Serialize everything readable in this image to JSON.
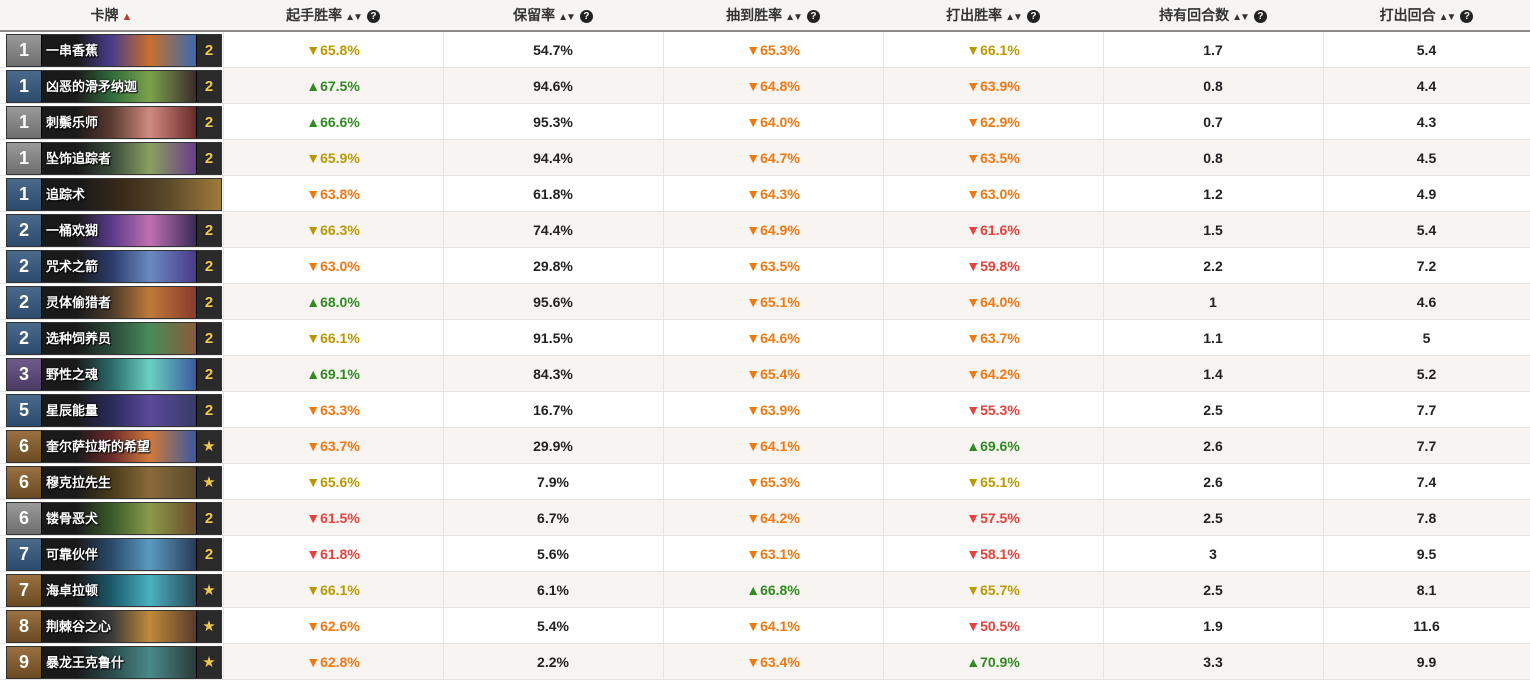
{
  "headers": {
    "card": "卡牌",
    "mulligan_winrate": "起手胜率",
    "keep_rate": "保留率",
    "drawn_winrate": "抽到胜率",
    "played_winrate": "打出胜率",
    "turns_held": "持有回合数",
    "turn_played": "打出回合"
  },
  "colors": {
    "up_green": "#2e8b1e",
    "down_yellow": "#b89a00",
    "down_orange": "#f07810",
    "down_red": "#e5423c"
  },
  "rows": [
    {
      "cost": "1",
      "cost_color": "c-gray",
      "name": "一串香蕉",
      "count": "2",
      "art": [
        "#4a3c8c",
        "#c9702e",
        "#3a6ab0"
      ],
      "mwr": "▼65.8%",
      "mwr_c": "down-y",
      "keep": "54.7%",
      "dwr": "▼65.3%",
      "dwr_c": "down-o",
      "pwr": "▼66.1%",
      "pwr_c": "down-y",
      "held": "1.7",
      "turn": "5.4"
    },
    {
      "cost": "1",
      "cost_color": "c-blue",
      "name": "凶恶的滑矛纳迦",
      "count": "2",
      "art": [
        "#2f6b3a",
        "#7aa34a",
        "#3c2a2a"
      ],
      "mwr": "▲67.5%",
      "mwr_c": "up-g",
      "keep": "94.6%",
      "dwr": "▼64.8%",
      "dwr_c": "down-o",
      "pwr": "▼63.9%",
      "pwr_c": "down-o",
      "held": "0.8",
      "turn": "4.4"
    },
    {
      "cost": "1",
      "cost_color": "c-gray",
      "name": "刺鬃乐师",
      "count": "2",
      "art": [
        "#5a3a30",
        "#d08a80",
        "#6a2a2a"
      ],
      "mwr": "▲66.6%",
      "mwr_c": "up-g",
      "keep": "95.3%",
      "dwr": "▼64.0%",
      "dwr_c": "down-o",
      "pwr": "▼62.9%",
      "pwr_c": "down-o",
      "held": "0.7",
      "turn": "4.3"
    },
    {
      "cost": "1",
      "cost_color": "c-gray",
      "name": "坠饰追踪者",
      "count": "2",
      "art": [
        "#3a4a3a",
        "#8aa060",
        "#6a3a8a"
      ],
      "mwr": "▼65.9%",
      "mwr_c": "down-y",
      "keep": "94.4%",
      "dwr": "▼64.7%",
      "dwr_c": "down-o",
      "pwr": "▼63.5%",
      "pwr_c": "down-o",
      "held": "0.8",
      "turn": "4.5"
    },
    {
      "cost": "1",
      "cost_color": "c-blue",
      "name": "追踪术",
      "count": "",
      "art": [
        "#3a2a1a",
        "#5a4a2a",
        "#a07a3a"
      ],
      "mwr": "▼63.8%",
      "mwr_c": "down-o",
      "keep": "61.8%",
      "dwr": "▼64.3%",
      "dwr_c": "down-o",
      "pwr": "▼63.0%",
      "pwr_c": "down-o",
      "held": "1.2",
      "turn": "4.9"
    },
    {
      "cost": "2",
      "cost_color": "c-blue",
      "name": "一桶欢猢",
      "count": "2",
      "art": [
        "#5a3a8a",
        "#c070b0",
        "#3a2a5a"
      ],
      "mwr": "▼66.3%",
      "mwr_c": "down-y",
      "keep": "74.4%",
      "dwr": "▼64.9%",
      "dwr_c": "down-o",
      "pwr": "▼61.6%",
      "pwr_c": "down-r",
      "held": "1.5",
      "turn": "5.4"
    },
    {
      "cost": "2",
      "cost_color": "c-blue",
      "name": "咒术之箭",
      "count": "2",
      "art": [
        "#2a3a6a",
        "#6a8ac0",
        "#4a3a8a"
      ],
      "mwr": "▼63.0%",
      "mwr_c": "down-o",
      "keep": "29.8%",
      "dwr": "▼63.5%",
      "dwr_c": "down-o",
      "pwr": "▼59.8%",
      "pwr_c": "down-r",
      "held": "2.2",
      "turn": "7.2"
    },
    {
      "cost": "2",
      "cost_color": "c-blue",
      "name": "灵体偷猎者",
      "count": "2",
      "art": [
        "#4a3a2a",
        "#c07a3a",
        "#8a3a2a"
      ],
      "mwr": "▲68.0%",
      "mwr_c": "up-g",
      "keep": "95.6%",
      "dwr": "▼65.1%",
      "dwr_c": "down-o",
      "pwr": "▼64.0%",
      "pwr_c": "down-o",
      "held": "1",
      "turn": "4.6"
    },
    {
      "cost": "2",
      "cost_color": "c-blue",
      "name": "选种饲养员",
      "count": "2",
      "art": [
        "#2a4a3a",
        "#4a8a5a",
        "#8a5a3a"
      ],
      "mwr": "▼66.1%",
      "mwr_c": "down-y",
      "keep": "91.5%",
      "dwr": "▼64.6%",
      "dwr_c": "down-o",
      "pwr": "▼63.7%",
      "pwr_c": "down-o",
      "held": "1.1",
      "turn": "5"
    },
    {
      "cost": "3",
      "cost_color": "c-purple",
      "name": "野性之魂",
      "count": "2",
      "art": [
        "#2a6a6a",
        "#6ad0c0",
        "#3a5aa0"
      ],
      "mwr": "▲69.1%",
      "mwr_c": "up-g",
      "keep": "84.3%",
      "dwr": "▼65.4%",
      "dwr_c": "down-o",
      "pwr": "▼64.2%",
      "pwr_c": "down-o",
      "held": "1.4",
      "turn": "5.2"
    },
    {
      "cost": "5",
      "cost_color": "c-blue",
      "name": "星辰能量",
      "count": "2",
      "art": [
        "#2a2a5a",
        "#5a4a9a",
        "#3a3a6a"
      ],
      "mwr": "▼63.3%",
      "mwr_c": "down-o",
      "keep": "16.7%",
      "dwr": "▼63.9%",
      "dwr_c": "down-o",
      "pwr": "▼55.3%",
      "pwr_c": "down-r",
      "held": "2.5",
      "turn": "7.7"
    },
    {
      "cost": "6",
      "cost_color": "c-brown",
      "name": "奎尔萨拉斯的希望",
      "count": "★",
      "art": [
        "#6a2a2a",
        "#d07a3a",
        "#3a5aa0"
      ],
      "mwr": "▼63.7%",
      "mwr_c": "down-o",
      "keep": "29.9%",
      "dwr": "▼64.1%",
      "dwr_c": "down-o",
      "pwr": "▲69.6%",
      "pwr_c": "up-g",
      "held": "2.6",
      "turn": "7.7"
    },
    {
      "cost": "6",
      "cost_color": "c-brown",
      "name": "穆克拉先生",
      "count": "★",
      "art": [
        "#4a3a1a",
        "#8a6a3a",
        "#5a4a2a"
      ],
      "mwr": "▼65.6%",
      "mwr_c": "down-y",
      "keep": "7.9%",
      "dwr": "▼65.3%",
      "dwr_c": "down-o",
      "pwr": "▼65.1%",
      "pwr_c": "down-y",
      "held": "2.6",
      "turn": "7.4"
    },
    {
      "cost": "6",
      "cost_color": "c-gray",
      "name": "镂骨恶犬",
      "count": "2",
      "art": [
        "#3a5a2a",
        "#8a9a4a",
        "#6a4a2a"
      ],
      "mwr": "▼61.5%",
      "mwr_c": "down-r",
      "keep": "6.7%",
      "dwr": "▼64.2%",
      "dwr_c": "down-o",
      "pwr": "▼57.5%",
      "pwr_c": "down-r",
      "held": "2.5",
      "turn": "7.8"
    },
    {
      "cost": "7",
      "cost_color": "c-blue",
      "name": "可靠伙伴",
      "count": "2",
      "art": [
        "#2a4a6a",
        "#5a9ac0",
        "#2a3a5a"
      ],
      "mwr": "▼61.8%",
      "mwr_c": "down-r",
      "keep": "5.6%",
      "dwr": "▼63.1%",
      "dwr_c": "down-o",
      "pwr": "▼58.1%",
      "pwr_c": "down-r",
      "held": "3",
      "turn": "9.5"
    },
    {
      "cost": "7",
      "cost_color": "c-brown",
      "name": "海卓拉顿",
      "count": "★",
      "art": [
        "#1a5a6a",
        "#4ab0c0",
        "#2a4a5a"
      ],
      "mwr": "▼66.1%",
      "mwr_c": "down-y",
      "keep": "6.1%",
      "dwr": "▲66.8%",
      "dwr_c": "up-g",
      "pwr": "▼65.7%",
      "pwr_c": "down-y",
      "held": "2.5",
      "turn": "8.1"
    },
    {
      "cost": "8",
      "cost_color": "c-brown",
      "name": "荆棘谷之心",
      "count": "★",
      "art": [
        "#3a3a3a",
        "#c08a3a",
        "#5a3a2a"
      ],
      "mwr": "▼62.6%",
      "mwr_c": "down-o",
      "keep": "5.4%",
      "dwr": "▼64.1%",
      "dwr_c": "down-o",
      "pwr": "▼50.5%",
      "pwr_c": "down-r",
      "held": "1.9",
      "turn": "11.6"
    },
    {
      "cost": "9",
      "cost_color": "c-brown",
      "name": "暴龙王克鲁什",
      "count": "★",
      "art": [
        "#2a4a4a",
        "#4a8a8a",
        "#2a3a3a"
      ],
      "mwr": "▼62.8%",
      "mwr_c": "down-o",
      "keep": "2.2%",
      "dwr": "▼63.4%",
      "dwr_c": "down-o",
      "pwr": "▲70.9%",
      "pwr_c": "up-g",
      "held": "3.3",
      "turn": "9.9"
    }
  ]
}
